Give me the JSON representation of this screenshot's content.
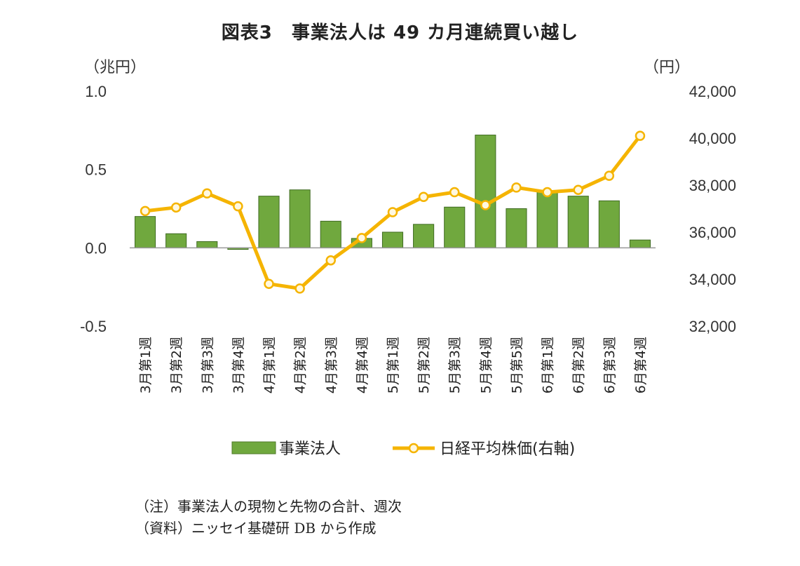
{
  "title": "図表3　事業法人は 49 カ月連続買い越し",
  "left_axis_unit": "（兆円）",
  "right_axis_unit": "（円）",
  "notes": {
    "line1": "（注）事業法人の現物と先物の合計、週次",
    "line2": "（資料）ニッセイ基礎研 DB から作成"
  },
  "chart_data": {
    "type": "bar+line",
    "categories": [
      "3月第1週",
      "3月第2週",
      "3月第3週",
      "3月第4週",
      "4月第1週",
      "4月第2週",
      "4月第3週",
      "4月第4週",
      "5月第1週",
      "5月第2週",
      "5月第3週",
      "5月第4週",
      "5月第5週",
      "6月第1週",
      "6月第2週",
      "6月第3週",
      "6月第4週"
    ],
    "series": [
      {
        "name": "事業法人",
        "type": "bar",
        "axis": "left",
        "color": "#70a83e",
        "values": [
          0.2,
          0.09,
          0.04,
          -0.01,
          0.33,
          0.37,
          0.17,
          0.06,
          0.1,
          0.15,
          0.26,
          0.72,
          0.25,
          0.36,
          0.33,
          0.3,
          0.05
        ]
      },
      {
        "name": "日経平均株価(右軸)",
        "type": "line",
        "axis": "right",
        "color": "#f5b400",
        "values": [
          36900,
          37050,
          37650,
          37100,
          33800,
          33600,
          34800,
          35750,
          36850,
          37500,
          37700,
          37150,
          37900,
          37700,
          37800,
          38400,
          40100
        ]
      }
    ],
    "left_axis": {
      "min": -0.5,
      "max": 1.0,
      "ticks": [
        "-0.5",
        "0.0",
        "0.5",
        "1.0"
      ]
    },
    "right_axis": {
      "min": 32000,
      "max": 42000,
      "ticks": [
        "32,000",
        "34,000",
        "36,000",
        "38,000",
        "40,000",
        "42,000"
      ]
    },
    "grid": false,
    "legend_position": "bottom"
  }
}
